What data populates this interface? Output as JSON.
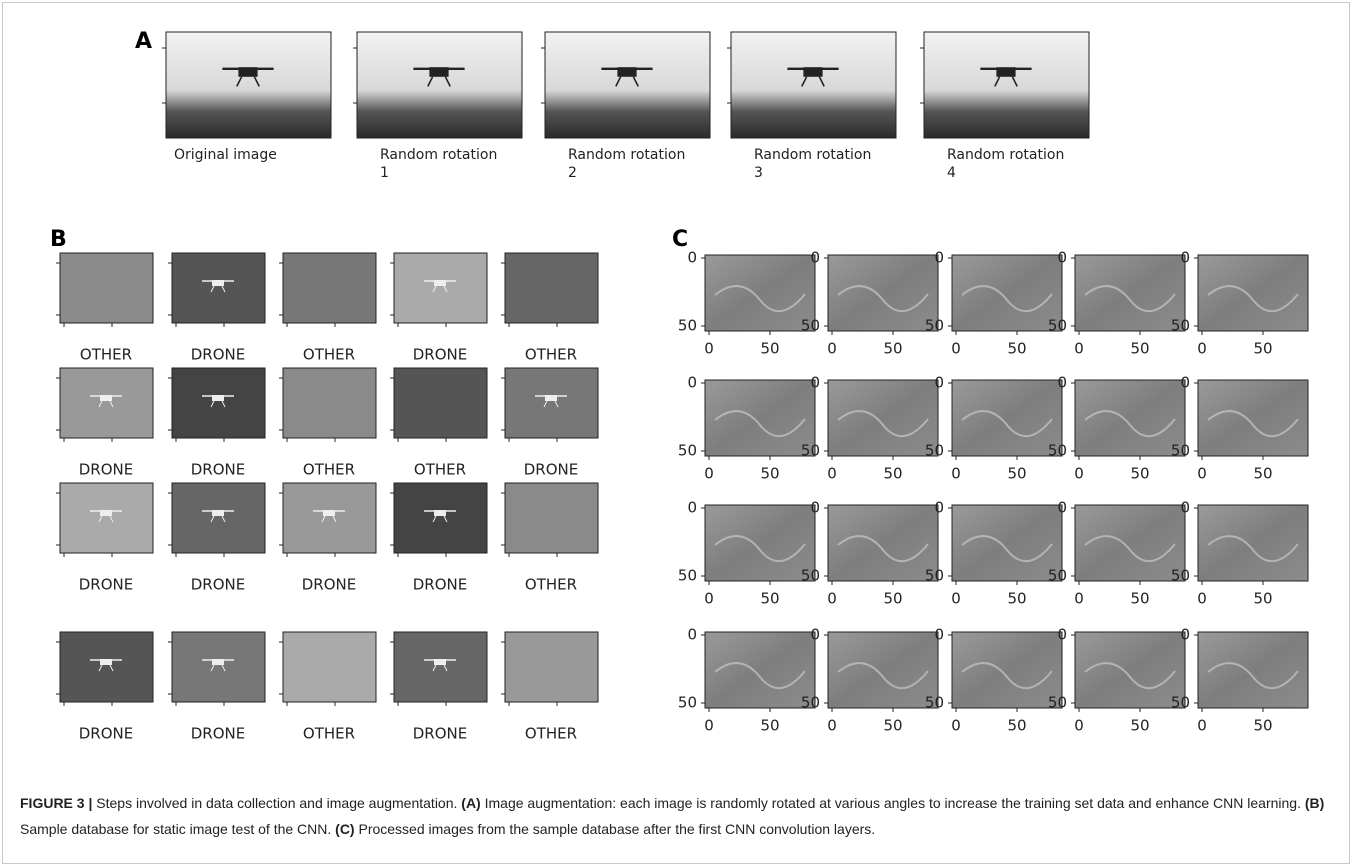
{
  "panel_a": {
    "label": "A",
    "captions": [
      [
        "Original image"
      ],
      [
        "Random rotation",
        "1"
      ],
      [
        "Random rotation",
        "2"
      ],
      [
        "Random rotation",
        "3"
      ],
      [
        "Random rotation",
        "4"
      ]
    ]
  },
  "panel_b": {
    "label": "B",
    "rows": [
      [
        "OTHER",
        "DRONE",
        "OTHER",
        "DRONE",
        "OTHER"
      ],
      [
        "DRONE",
        "DRONE",
        "OTHER",
        "OTHER",
        "DRONE"
      ],
      [
        "DRONE",
        "DRONE",
        "DRONE",
        "DRONE",
        "OTHER"
      ],
      [
        "DRONE",
        "DRONE",
        "OTHER",
        "DRONE",
        "OTHER"
      ]
    ]
  },
  "panel_c": {
    "label": "C",
    "yticks": [
      0,
      50
    ],
    "xticks": [
      0,
      50
    ]
  },
  "caption": {
    "label": "FIGURE 3 |",
    "intro": "Steps involved in data collection and image augmentation.",
    "parts": [
      {
        "key": "(A)",
        "text": "Image augmentation: each image is randomly rotated at various angles to increase the training set data and enhance CNN learning."
      },
      {
        "key": "(B)",
        "text": "Sample database for static image test of the CNN."
      },
      {
        "key": "(C)",
        "text": "Processed images from the sample database after the first CNN convolution layers."
      }
    ]
  }
}
